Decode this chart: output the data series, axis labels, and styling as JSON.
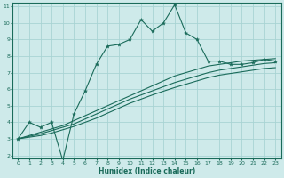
{
  "xlabel": "Humidex (Indice chaleur)",
  "ylabel": "",
  "background_color": "#ceeaea",
  "grid_color": "#a8d4d4",
  "line_color": "#1a6b5a",
  "xlim": [
    -0.5,
    23.5
  ],
  "ylim": [
    1.8,
    11.2
  ],
  "xticks": [
    0,
    1,
    2,
    3,
    4,
    5,
    6,
    7,
    8,
    9,
    10,
    11,
    12,
    13,
    14,
    15,
    16,
    17,
    18,
    19,
    20,
    21,
    22,
    23
  ],
  "yticks": [
    2,
    3,
    4,
    5,
    6,
    7,
    8,
    9,
    10,
    11
  ],
  "line1_x": [
    0,
    1,
    2,
    3,
    4,
    5,
    6,
    7,
    8,
    9,
    10,
    11,
    12,
    13,
    14,
    15,
    16,
    17,
    18,
    19,
    20,
    21,
    22,
    23
  ],
  "line1_y": [
    3.0,
    4.0,
    3.7,
    4.0,
    1.7,
    4.5,
    5.9,
    7.5,
    8.6,
    8.7,
    9.0,
    10.2,
    9.5,
    10.0,
    11.1,
    9.4,
    9.0,
    7.7,
    7.7,
    7.5,
    7.5,
    7.6,
    7.8,
    7.7
  ],
  "line2_x": [
    0,
    1,
    2,
    3,
    4,
    5,
    6,
    7,
    8,
    9,
    10,
    11,
    12,
    13,
    14,
    15,
    16,
    17,
    18,
    19,
    20,
    21,
    22,
    23
  ],
  "line2_y": [
    3.0,
    3.2,
    3.4,
    3.6,
    3.8,
    4.1,
    4.4,
    4.7,
    5.0,
    5.3,
    5.6,
    5.9,
    6.2,
    6.5,
    6.8,
    7.0,
    7.2,
    7.4,
    7.5,
    7.6,
    7.7,
    7.75,
    7.8,
    7.85
  ],
  "line3_x": [
    0,
    1,
    2,
    3,
    4,
    5,
    6,
    7,
    8,
    9,
    10,
    11,
    12,
    13,
    14,
    15,
    16,
    17,
    18,
    19,
    20,
    21,
    22,
    23
  ],
  "line3_y": [
    3.0,
    3.15,
    3.3,
    3.5,
    3.7,
    3.9,
    4.2,
    4.5,
    4.8,
    5.1,
    5.4,
    5.65,
    5.9,
    6.15,
    6.4,
    6.6,
    6.8,
    7.0,
    7.15,
    7.25,
    7.35,
    7.45,
    7.55,
    7.6
  ],
  "line4_x": [
    0,
    1,
    2,
    3,
    4,
    5,
    6,
    7,
    8,
    9,
    10,
    11,
    12,
    13,
    14,
    15,
    16,
    17,
    18,
    19,
    20,
    21,
    22,
    23
  ],
  "line4_y": [
    3.0,
    3.1,
    3.2,
    3.35,
    3.55,
    3.75,
    4.0,
    4.25,
    4.55,
    4.85,
    5.15,
    5.4,
    5.65,
    5.88,
    6.1,
    6.3,
    6.5,
    6.7,
    6.85,
    6.95,
    7.05,
    7.15,
    7.25,
    7.3
  ]
}
